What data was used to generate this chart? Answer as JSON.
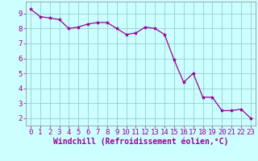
{
  "x": [
    0,
    1,
    2,
    3,
    4,
    5,
    6,
    7,
    8,
    9,
    10,
    11,
    12,
    13,
    14,
    15,
    16,
    17,
    18,
    19,
    20,
    21,
    22,
    23
  ],
  "y": [
    9.3,
    8.8,
    8.7,
    8.6,
    8.0,
    8.1,
    8.3,
    8.4,
    8.4,
    8.0,
    7.6,
    7.7,
    8.1,
    8.0,
    7.6,
    5.9,
    4.4,
    5.0,
    3.4,
    3.4,
    2.5,
    2.5,
    2.6,
    2.0
  ],
  "line_color": "#990099",
  "marker": "*",
  "marker_size": 3,
  "bg_color": "#ccffff",
  "grid_color": "#99cccc",
  "xlabel": "Windchill (Refroidissement éolien,°C)",
  "xlabel_color": "#990099",
  "xlabel_fontsize": 7,
  "ylabel_ticks": [
    2,
    3,
    4,
    5,
    6,
    7,
    8,
    9
  ],
  "ylim": [
    1.5,
    9.8
  ],
  "xlim": [
    -0.5,
    23.5
  ],
  "tick_fontsize": 6.5,
  "tick_color": "#990099",
  "spine_color": "#999999",
  "linewidth": 0.9
}
